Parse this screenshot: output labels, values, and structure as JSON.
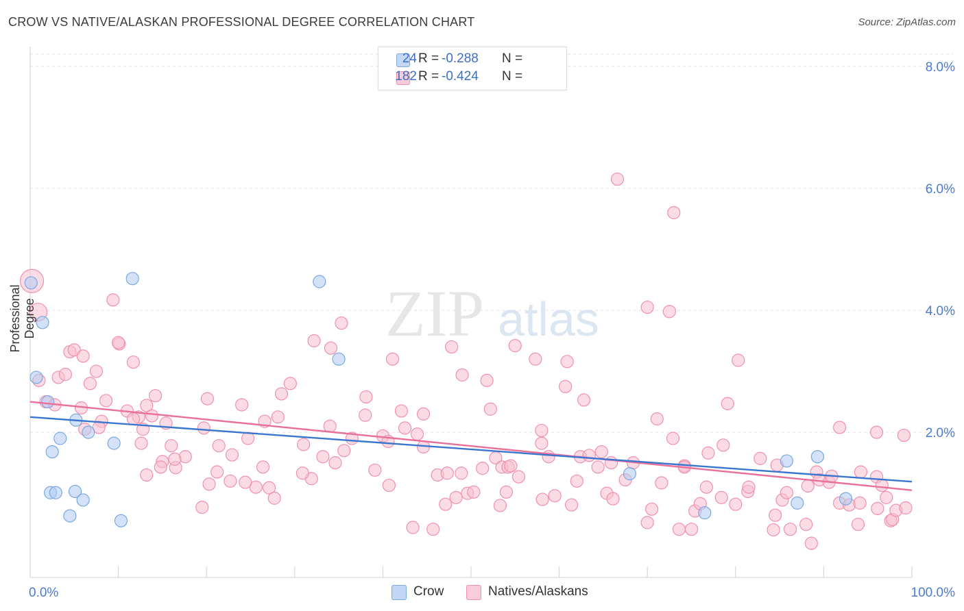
{
  "title": "CROW VS NATIVE/ALASKAN PROFESSIONAL DEGREE CORRELATION CHART",
  "source": "Source: ZipAtlas.com",
  "watermark": {
    "zip": "ZIP",
    "atlas": "atlas"
  },
  "legend": {
    "rows": [
      {
        "r_label": "R =",
        "r_value": "-0.288",
        "n_label": "N =",
        "n_value": "24",
        "color": "#aecbf3"
      },
      {
        "r_label": "R =",
        "r_value": "-0.424",
        "n_label": "N =",
        "n_value": "182",
        "color": "#f8bfd0"
      }
    ]
  },
  "bottom_legend": [
    {
      "label": "Crow",
      "color": "#aecbf3"
    },
    {
      "label": "Natives/Alaskans",
      "color": "#f8bfd0"
    }
  ],
  "chart_data": {
    "type": "scatter",
    "title": "CROW VS NATIVE/ALASKAN PROFESSIONAL DEGREE CORRELATION CHART",
    "xlabel": "",
    "ylabel": "Professional Degree",
    "xlim": [
      0,
      100
    ],
    "ylim": [
      -0.2,
      8.2
    ],
    "x_tick_labels": [
      "0.0%",
      "100.0%"
    ],
    "y_ticks": [
      2.0,
      4.0,
      6.0,
      8.0
    ],
    "y_tick_labels": [
      "2.0%",
      "4.0%",
      "6.0%",
      "8.0%"
    ],
    "grid": "horizontal dashed",
    "legend_position": "top-center",
    "series": [
      {
        "name": "Crow",
        "color": "#aecbf3",
        "edge": "#7aa8e0",
        "line_color": "#3a76cf",
        "trend": {
          "x": [
            0,
            100
          ],
          "y": [
            2.25,
            1.19
          ]
        },
        "points": [
          [
            0.1,
            4.45
          ],
          [
            1.4,
            3.8
          ],
          [
            0.7,
            2.9
          ],
          [
            2.0,
            2.5
          ],
          [
            5.2,
            2.2
          ],
          [
            3.4,
            1.9
          ],
          [
            6.6,
            2.0
          ],
          [
            9.5,
            1.82
          ],
          [
            2.5,
            1.68
          ],
          [
            2.3,
            1.01
          ],
          [
            2.9,
            1.01
          ],
          [
            5.1,
            1.03
          ],
          [
            6.0,
            0.89
          ],
          [
            4.5,
            0.63
          ],
          [
            10.3,
            0.55
          ],
          [
            11.6,
            4.52
          ],
          [
            32.8,
            4.47
          ],
          [
            35.0,
            3.2
          ],
          [
            68.0,
            1.32
          ],
          [
            76.5,
            0.68
          ],
          [
            85.8,
            1.53
          ],
          [
            87.0,
            0.84
          ],
          [
            89.3,
            1.6
          ],
          [
            92.5,
            0.91
          ]
        ]
      },
      {
        "name": "Natives/Alaskans",
        "color": "#f8bfd0",
        "edge": "#ef90ad",
        "line_color": "#e8709a",
        "trend": {
          "x": [
            0,
            100
          ],
          "y": [
            2.5,
            1.05
          ]
        },
        "points": [
          [
            1.0,
            2.85
          ],
          [
            1.8,
            2.5
          ],
          [
            2.8,
            2.45
          ],
          [
            3.2,
            2.9
          ],
          [
            4.5,
            3.32
          ],
          [
            5.0,
            3.35
          ],
          [
            6.0,
            3.25
          ],
          [
            6.8,
            2.8
          ],
          [
            7.5,
            3.0
          ],
          [
            4.0,
            2.95
          ],
          [
            5.8,
            2.4
          ],
          [
            8.6,
            2.52
          ],
          [
            9.4,
            4.17
          ],
          [
            10.1,
            3.45
          ],
          [
            10.0,
            3.47
          ],
          [
            11.7,
            3.15
          ],
          [
            8.1,
            2.18
          ],
          [
            7.8,
            2.08
          ],
          [
            6.2,
            2.05
          ],
          [
            11.0,
            2.35
          ],
          [
            12.3,
            2.25
          ],
          [
            13.8,
            2.27
          ],
          [
            14.2,
            2.6
          ],
          [
            13.2,
            2.44
          ],
          [
            11.7,
            2.22
          ],
          [
            12.8,
            2.05
          ],
          [
            12.6,
            1.82
          ],
          [
            15.4,
            2.15
          ],
          [
            16.0,
            1.78
          ],
          [
            17.6,
            1.6
          ],
          [
            19.7,
            2.07
          ],
          [
            20.1,
            2.55
          ],
          [
            21.4,
            1.78
          ],
          [
            22.9,
            1.63
          ],
          [
            24.0,
            2.45
          ],
          [
            24.7,
            1.9
          ],
          [
            26.6,
            2.18
          ],
          [
            28.1,
            2.25
          ],
          [
            28.5,
            2.63
          ],
          [
            29.5,
            2.8
          ],
          [
            26.4,
            1.43
          ],
          [
            27.1,
            1.09
          ],
          [
            25.6,
            1.1
          ],
          [
            24.4,
            1.18
          ],
          [
            22.7,
            1.2
          ],
          [
            21.2,
            1.35
          ],
          [
            20.3,
            1.15
          ],
          [
            19.5,
            0.77
          ],
          [
            16.5,
            1.42
          ],
          [
            16.4,
            1.56
          ],
          [
            15.0,
            1.52
          ],
          [
            14.8,
            1.43
          ],
          [
            13.2,
            1.3
          ],
          [
            27.7,
            0.92
          ],
          [
            31.0,
            1.8
          ],
          [
            31.9,
            1.24
          ],
          [
            30.9,
            1.33
          ],
          [
            32.2,
            3.5
          ],
          [
            33.2,
            1.6
          ],
          [
            34.6,
            1.5
          ],
          [
            35.6,
            1.7
          ],
          [
            34.0,
            2.1
          ],
          [
            34.1,
            3.38
          ],
          [
            35.3,
            3.79
          ],
          [
            36.5,
            1.9
          ],
          [
            38.1,
            2.58
          ],
          [
            38.0,
            2.28
          ],
          [
            39.1,
            1.38
          ],
          [
            40.0,
            1.94
          ],
          [
            40.7,
            1.13
          ],
          [
            41.1,
            3.2
          ],
          [
            40.6,
            1.85
          ],
          [
            42.1,
            2.35
          ],
          [
            42.5,
            2.07
          ],
          [
            43.9,
            1.97
          ],
          [
            44.6,
            2.3
          ],
          [
            44.6,
            1.76
          ],
          [
            43.4,
            0.44
          ],
          [
            45.7,
            0.41
          ],
          [
            46.2,
            1.3
          ],
          [
            47.1,
            0.82
          ],
          [
            47.3,
            1.33
          ],
          [
            48.9,
            1.33
          ],
          [
            48.3,
            0.93
          ],
          [
            47.8,
            3.4
          ],
          [
            49.0,
            2.94
          ],
          [
            49.6,
            1.0
          ],
          [
            50.3,
            1.02
          ],
          [
            51.3,
            1.41
          ],
          [
            51.8,
            2.85
          ],
          [
            52.8,
            1.58
          ],
          [
            52.2,
            2.38
          ],
          [
            53.3,
            0.8
          ],
          [
            53.5,
            1.43
          ],
          [
            54.0,
            1.02
          ],
          [
            54.2,
            1.43
          ],
          [
            54.5,
            1.45
          ],
          [
            55.4,
            1.27
          ],
          [
            55.0,
            3.42
          ],
          [
            57.3,
            3.2
          ],
          [
            58.0,
            1.82
          ],
          [
            58.0,
            2.03
          ],
          [
            58.1,
            0.9
          ],
          [
            58.8,
            1.6
          ],
          [
            59.5,
            0.96
          ],
          [
            60.7,
            2.75
          ],
          [
            60.9,
            3.16
          ],
          [
            61.4,
            0.81
          ],
          [
            62.0,
            1.2
          ],
          [
            62.4,
            1.6
          ],
          [
            62.8,
            2.53
          ],
          [
            63.4,
            1.62
          ],
          [
            64.4,
            1.43
          ],
          [
            64.8,
            1.68
          ],
          [
            65.4,
            1.0
          ],
          [
            65.9,
            1.5
          ],
          [
            66.1,
            0.91
          ],
          [
            66.6,
            6.15
          ],
          [
            67.5,
            1.22
          ],
          [
            68.4,
            1.5
          ],
          [
            70.0,
            0.52
          ],
          [
            70.0,
            4.05
          ],
          [
            70.5,
            0.74
          ],
          [
            71.1,
            2.22
          ],
          [
            71.6,
            1.17
          ],
          [
            72.5,
            3.98
          ],
          [
            72.9,
            1.9
          ],
          [
            73.0,
            5.6
          ],
          [
            74.2,
            1.45
          ],
          [
            73.6,
            0.41
          ],
          [
            74.2,
            1.43
          ],
          [
            75.4,
            0.71
          ],
          [
            75.0,
            0.41
          ],
          [
            76.0,
            0.83
          ],
          [
            76.7,
            1.1
          ],
          [
            76.9,
            1.66
          ],
          [
            78.6,
            1.79
          ],
          [
            79.1,
            2.47
          ],
          [
            78.4,
            0.93
          ],
          [
            80.0,
            0.82
          ],
          [
            80.3,
            3.18
          ],
          [
            81.4,
            1.03
          ],
          [
            81.5,
            1.1
          ],
          [
            82.8,
            1.57
          ],
          [
            84.3,
            0.4
          ],
          [
            84.7,
            1.46
          ],
          [
            84.5,
            0.64
          ],
          [
            85.3,
            0.89
          ],
          [
            85.8,
            1.01
          ],
          [
            86.2,
            0.41
          ],
          [
            88.0,
            0.49
          ],
          [
            88.2,
            1.12
          ],
          [
            88.6,
            0.18
          ],
          [
            89.2,
            1.35
          ],
          [
            89.5,
            1.22
          ],
          [
            90.6,
            1.18
          ],
          [
            90.9,
            1.28
          ],
          [
            91.8,
            0.84
          ],
          [
            91.8,
            2.08
          ],
          [
            92.9,
            0.81
          ],
          [
            93.9,
            0.49
          ],
          [
            94.2,
            1.35
          ],
          [
            94.1,
            0.84
          ],
          [
            96.1,
            0.75
          ],
          [
            96.0,
            2.0
          ],
          [
            96.0,
            1.27
          ],
          [
            96.6,
            1.13
          ],
          [
            97.6,
            0.55
          ],
          [
            97.8,
            0.57
          ],
          [
            98.2,
            0.72
          ],
          [
            99.1,
            1.95
          ],
          [
            99.3,
            0.76
          ],
          [
            97.1,
            0.93
          ],
          [
            0.2,
            4.48
          ],
          [
            0.9,
            3.97
          ]
        ]
      }
    ],
    "x_tick_minor": [
      0,
      10,
      20,
      30,
      40,
      50,
      60,
      70,
      80,
      90,
      100
    ]
  }
}
